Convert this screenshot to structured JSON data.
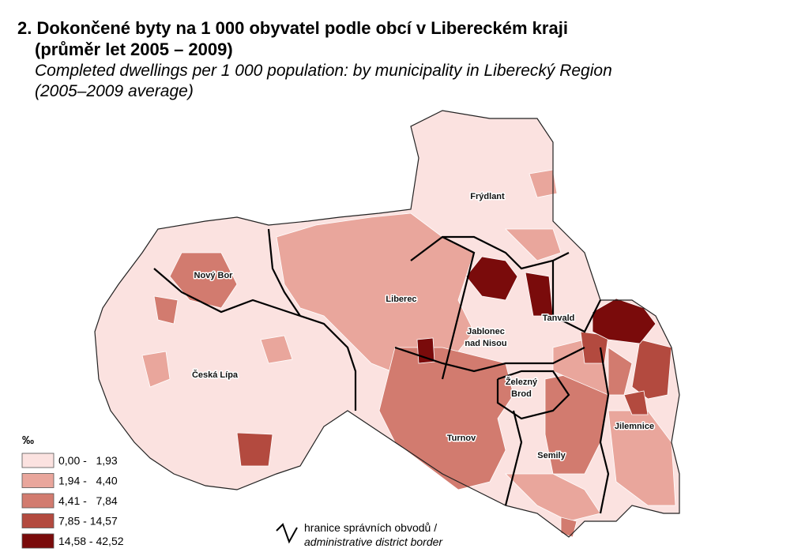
{
  "title": {
    "cz_line1": "2. Dokončené byty na 1 000 obyvatel podle obcí v Libereckém kraji",
    "cz_line2": "(průměr let 2005 – 2009)",
    "en_line1": "Completed dwellings per 1 000 population: by municipality in Liberecký Region",
    "en_line2": "(2005–2009 average)"
  },
  "legend": {
    "unit": "‰",
    "classes": [
      {
        "label": "0,00 -   1,93",
        "color": "#fbe2e0"
      },
      {
        "label": "1,94 -   4,40",
        "color": "#e9a69c"
      },
      {
        "label": "4,41 -   7,84",
        "color": "#d27b6f"
      },
      {
        "label": "7,85 - 14,57",
        "color": "#b34a3f"
      },
      {
        "label": "14,58 - 42,52",
        "color": "#7a0b0b"
      }
    ]
  },
  "places": [
    {
      "lines": [
        "Frýdlant"
      ]
    },
    {
      "lines": [
        "Nový Bor"
      ]
    },
    {
      "lines": [
        "Liberec"
      ]
    },
    {
      "lines": [
        "Jablonec",
        "nad Nisou"
      ]
    },
    {
      "lines": [
        "Tanvald"
      ]
    },
    {
      "lines": [
        "Česká Lípa"
      ]
    },
    {
      "lines": [
        "Železný",
        "Brod"
      ]
    },
    {
      "lines": [
        "Turnov"
      ]
    },
    {
      "lines": [
        "Jilemnice"
      ]
    },
    {
      "lines": [
        "Semily"
      ]
    }
  ],
  "border_legend": {
    "line1": "hranice správních obvodů /",
    "line2": "administrative district border"
  }
}
